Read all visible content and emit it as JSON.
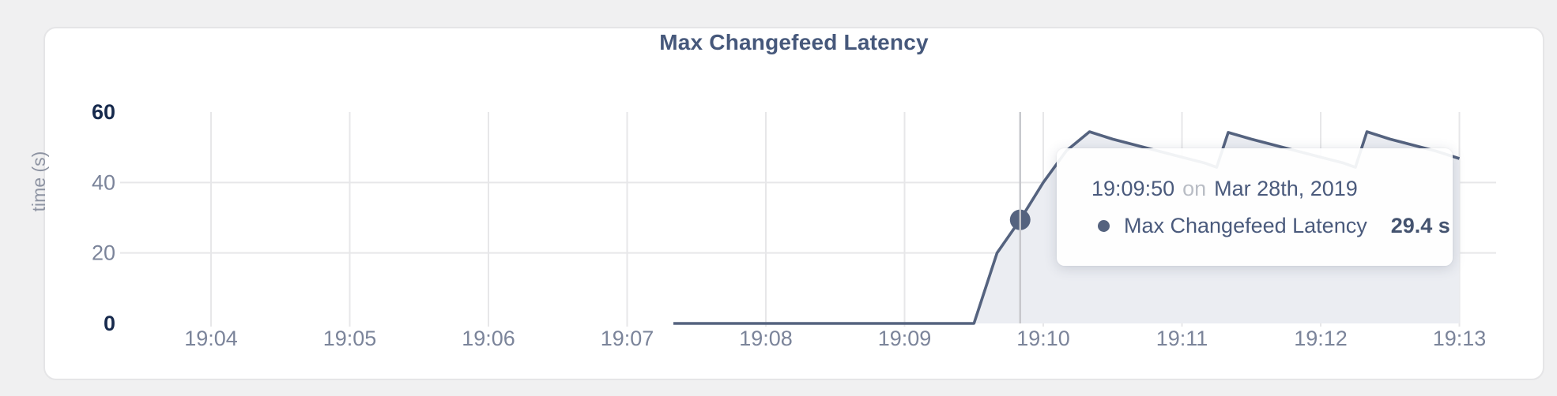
{
  "header": {
    "title": "Max Changefeed Latency"
  },
  "chart_data": {
    "type": "area",
    "title": "Max Changefeed Latency",
    "xlabel": "",
    "ylabel": "time (s)",
    "unit": "s",
    "ylim": [
      0,
      60
    ],
    "y_ticks": [
      0,
      20,
      40,
      60
    ],
    "x_tick_labels": [
      "19:04",
      "19:05",
      "19:06",
      "19:07",
      "19:08",
      "19:09",
      "19:10",
      "19:11",
      "19:12",
      "19:13"
    ],
    "x_min": "19:03:23",
    "x_max": "19:13:00",
    "grid": true,
    "legend_position": "none",
    "colors": {
      "line": "#55637f",
      "fill": "#ebedf2",
      "accent_text": "#46587b"
    },
    "series": [
      {
        "name": "Max Changefeed Latency",
        "points": [
          {
            "t": "19:07:20",
            "v": 0
          },
          {
            "t": "19:09:30",
            "v": 0
          },
          {
            "t": "19:09:40",
            "v": 20
          },
          {
            "t": "19:09:50",
            "v": 29.4
          },
          {
            "t": "19:10:00",
            "v": 40
          },
          {
            "t": "19:10:10",
            "v": 49
          },
          {
            "t": "19:10:20",
            "v": 54.4
          },
          {
            "t": "19:10:30",
            "v": 52.3
          },
          {
            "t": "19:10:40",
            "v": 50.6
          },
          {
            "t": "19:10:50",
            "v": 48.9
          },
          {
            "t": "19:11:00",
            "v": 47.2
          },
          {
            "t": "19:11:10",
            "v": 45.5
          },
          {
            "t": "19:11:15",
            "v": 44.3
          },
          {
            "t": "19:11:20",
            "v": 54.2
          },
          {
            "t": "19:11:30",
            "v": 52.3
          },
          {
            "t": "19:11:40",
            "v": 50.6
          },
          {
            "t": "19:11:50",
            "v": 48.9
          },
          {
            "t": "19:12:00",
            "v": 47.2
          },
          {
            "t": "19:12:10",
            "v": 45.5
          },
          {
            "t": "19:12:15",
            "v": 44.3
          },
          {
            "t": "19:12:20",
            "v": 54.4
          },
          {
            "t": "19:12:30",
            "v": 52.3
          },
          {
            "t": "19:12:40",
            "v": 50.6
          },
          {
            "t": "19:12:50",
            "v": 48.9
          },
          {
            "t": "19:13:00",
            "v": 46.8
          }
        ]
      }
    ],
    "hover": {
      "t": "19:09:50",
      "v": 29.4
    }
  },
  "tooltip": {
    "time": "19:09:50",
    "conjunction": "on",
    "date": "Mar 28th, 2019",
    "series_label": "Max Changefeed Latency",
    "value": "29.4 s"
  }
}
